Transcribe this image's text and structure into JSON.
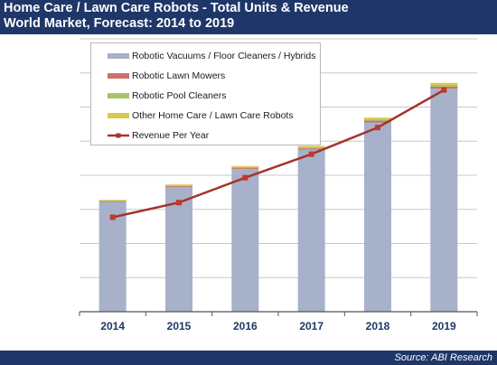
{
  "header": {
    "title": "Home Care / Lawn Care Robots - Total Units & Revenue",
    "subtitle": "World Market, Forecast: 2014 to 2019"
  },
  "footer": {
    "source": "Source: ABI Research"
  },
  "colors": {
    "header_bg": "#1f3768",
    "vacuums": "#a7b1c9",
    "lawn": "#cf6f6a",
    "pool": "#a7c46c",
    "other": "#d8c94c",
    "revenue": "#a8322c",
    "gridline": "#c8c8c8"
  },
  "legend": {
    "items": [
      {
        "label": "Robotic Vacuums / Floor Cleaners / Hybrids",
        "color": "#a7b1c9",
        "kind": "bar"
      },
      {
        "label": "Robotic Lawn Mowers",
        "color": "#cf6f6a",
        "kind": "bar"
      },
      {
        "label": "Robotic Pool Cleaners",
        "color": "#a7c46c",
        "kind": "bar"
      },
      {
        "label": "Other Home Care / Lawn Care Robots",
        "color": "#d8c94c",
        "kind": "bar"
      },
      {
        "label": "Revenue Per Year",
        "color": "#a8322c",
        "kind": "line"
      }
    ]
  },
  "chart_data": {
    "type": "bar",
    "stacked": true,
    "categories": [
      "2014",
      "2015",
      "2016",
      "2017",
      "2018",
      "2019"
    ],
    "series": [
      {
        "name": "Robotic Vacuums / Floor Cleaners / Hybrids",
        "type": "bar",
        "values": [
          3.22,
          3.65,
          4.18,
          4.75,
          5.55,
          6.54
        ]
      },
      {
        "name": "Robotic Lawn Mowers",
        "type": "bar",
        "values": [
          0.02,
          0.03,
          0.03,
          0.04,
          0.05,
          0.06
        ]
      },
      {
        "name": "Robotic Pool Cleaners",
        "type": "bar",
        "values": [
          0.02,
          0.02,
          0.03,
          0.03,
          0.04,
          0.05
        ]
      },
      {
        "name": "Other Home Care / Lawn Care Robots",
        "type": "bar",
        "values": [
          0.02,
          0.03,
          0.03,
          0.04,
          0.05,
          0.06
        ]
      },
      {
        "name": "Revenue Per Year",
        "type": "line",
        "values": [
          2.77,
          3.2,
          3.93,
          4.62,
          5.4,
          6.5
        ]
      }
    ],
    "ylim": [
      0,
      8
    ],
    "grid": true,
    "legend_position": "top-left"
  }
}
